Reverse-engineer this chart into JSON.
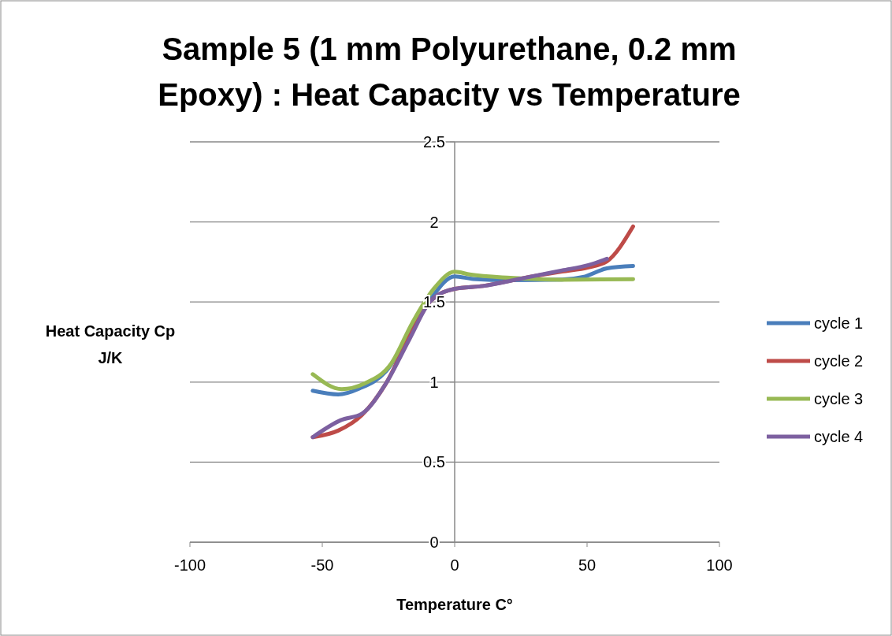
{
  "chart_data": {
    "type": "line",
    "title": "Sample 5 (1 mm Polyurethane, 0.2 mm Epoxy) : Heat Capacity vs Temperature",
    "xlabel": "Temperature C°",
    "ylabel": "Heat Capacity Cp J/K",
    "xlim": [
      -100,
      100
    ],
    "xticks": [
      -100,
      -50,
      0,
      50,
      100
    ],
    "ylim": [
      0,
      2.5
    ],
    "yticks": [
      0,
      0.5,
      1,
      1.5,
      2,
      2.5
    ],
    "grid": "y",
    "legend": "right",
    "line_style": "solid",
    "marker": "none",
    "series": [
      {
        "name": "cycle 1",
        "color": "#4a7ebb",
        "x": [
          -53.6,
          -44,
          -36,
          -26,
          -17,
          -9,
          0,
          7,
          21,
          40.5,
          48.5,
          57.5,
          67.4
        ],
        "values": [
          0.946,
          0.923,
          0.96,
          1.066,
          1.3,
          1.52,
          1.66,
          1.644,
          1.636,
          1.64,
          1.656,
          1.71,
          1.725
        ]
      },
      {
        "name": "cycle 2",
        "color": "#be4b48",
        "x": [
          -53.6,
          -44,
          -35,
          -26,
          -17,
          -9,
          0,
          10.7,
          25.6,
          40.5,
          50.5,
          57.5,
          67.4
        ],
        "values": [
          0.656,
          0.697,
          0.795,
          0.99,
          1.287,
          1.508,
          1.582,
          1.6,
          1.648,
          1.69,
          1.716,
          1.754,
          1.972
        ]
      },
      {
        "name": "cycle 3",
        "color": "#98b954",
        "x": [
          -53.6,
          -42.6,
          -34,
          -24,
          -16,
          -8,
          0,
          5.7,
          21,
          40.5,
          67.4
        ],
        "values": [
          1.049,
          0.956,
          0.992,
          1.115,
          1.37,
          1.58,
          1.689,
          1.672,
          1.651,
          1.639,
          1.643
        ]
      },
      {
        "name": "cycle 4",
        "color": "#7d60a0",
        "x": [
          -53.6,
          -43,
          -35,
          -26,
          -17,
          -9,
          0,
          10.7,
          25.6,
          40.5,
          50.5,
          57.5
        ],
        "values": [
          0.656,
          0.762,
          0.803,
          0.99,
          1.27,
          1.508,
          1.582,
          1.6,
          1.648,
          1.697,
          1.73,
          1.77
        ]
      }
    ]
  }
}
